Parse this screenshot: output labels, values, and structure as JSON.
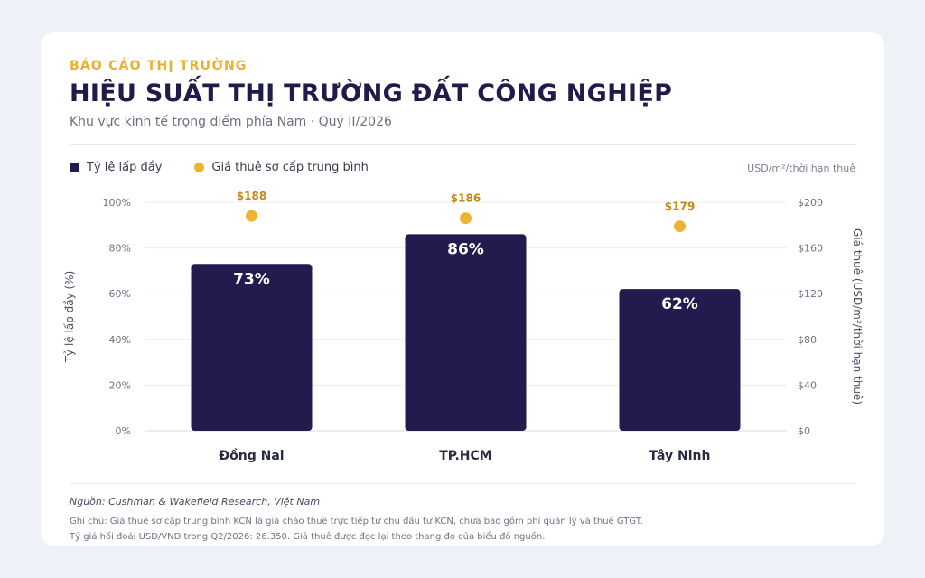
{
  "header": {
    "kicker": "BÁO CÁO THỊ TRƯỜNG",
    "title": "HIỆU SUẤT THỊ TRƯỜNG ĐẤT CÔNG NGHIỆP",
    "subtitle": "Khu vực kinh tế trọng điểm phía Nam · Quý II/2026"
  },
  "legend": {
    "occupancy": "Tỷ lệ lấp đầy",
    "rent": "Giá thuê sơ cấp trung bình",
    "unit": "USD/m²/thời hạn thuê"
  },
  "colors": {
    "bar": "#231b4e",
    "dot": "#eeb332",
    "rent_label": "#c08a16",
    "accent": "#e9b031"
  },
  "chart_data": {
    "type": "bar",
    "categories": [
      "Đồng Nai",
      "TP.HCM",
      "Tây Ninh"
    ],
    "series": [
      {
        "name": "Tỷ lệ lấp đầy",
        "axis": "left",
        "values": [
          73,
          86,
          62
        ],
        "value_labels": [
          "73%",
          "86%",
          "62%"
        ]
      },
      {
        "name": "Giá thuê sơ cấp trung bình",
        "axis": "right",
        "type": "scatter",
        "values": [
          188,
          186,
          179
        ],
        "value_labels": [
          "$188",
          "$186",
          "$179"
        ]
      }
    ],
    "ylabel": "Tỷ lệ lấp đầy (%)",
    "ylabel_right": "Giá thuê (USD/m²/thời hạn thuê)",
    "ylim": [
      0,
      100
    ],
    "ylim_right": [
      0,
      200
    ],
    "yticks": [
      "0%",
      "20%",
      "40%",
      "60%",
      "80%",
      "100%"
    ],
    "yticks_right": [
      "$0",
      "$40",
      "$80",
      "$120",
      "$160",
      "$200"
    ],
    "grid": true,
    "legend": "top-left"
  },
  "footer": {
    "source": "Nguồn: Cushman & Wakefield Research, Việt Nam",
    "note1": "Ghi chú: Giá thuê sơ cấp trung bình KCN là giá chào thuê trực tiếp từ chủ đầu tư KCN, chưa bao gồm phí quản lý và thuế GTGT.",
    "note2": "Tỷ giá hối đoái USD/VND trong Q2/2026: 26.350. Giá thuê được đọc lại theo thang đo của biểu đồ nguồn."
  }
}
